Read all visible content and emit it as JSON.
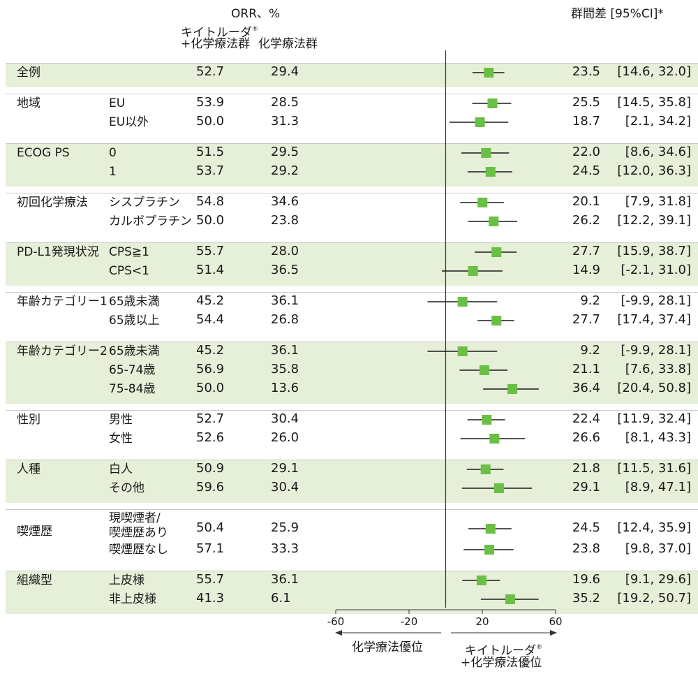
{
  "header": {
    "orr_title": "ORR、%",
    "arm1_line1": "キイトルーダ",
    "arm1_reg": "®",
    "arm1_line2": "+化学療法群",
    "arm2": "化学療法群",
    "diff_title": "群間差 [95%CI]*"
  },
  "footer": {
    "left_label": "化学療法優位",
    "right_line1": "キイトルーダ",
    "right_reg": "®",
    "right_line2": "+化学療法優位"
  },
  "chart_data": {
    "type": "forest",
    "xlim": [
      -60,
      60
    ],
    "xticks": [
      -60,
      -20,
      20,
      60
    ],
    "reference_line": 0,
    "marker_color": "#6abf45",
    "band_color": "#e6efd8",
    "groups": [
      {
        "label": "全例",
        "rows": [
          {
            "sub": "",
            "arm1": "52.7",
            "arm2": "29.4",
            "diff": 23.5,
            "ci_low": 14.6,
            "ci_high": 32.0,
            "diff_text": "23.5",
            "ci_text": "[14.6, 32.0]"
          }
        ]
      },
      {
        "label": "地域",
        "rows": [
          {
            "sub": "EU",
            "arm1": "53.9",
            "arm2": "28.5",
            "diff": 25.5,
            "ci_low": 14.5,
            "ci_high": 35.8,
            "diff_text": "25.5",
            "ci_text": "[14.5, 35.8]"
          },
          {
            "sub": "EU以外",
            "arm1": "50.0",
            "arm2": "31.3",
            "diff": 18.7,
            "ci_low": 2.1,
            "ci_high": 34.2,
            "diff_text": "18.7",
            "ci_text": "[2.1, 34.2]"
          }
        ]
      },
      {
        "label": "ECOG PS",
        "rows": [
          {
            "sub": "0",
            "arm1": "51.5",
            "arm2": "29.5",
            "diff": 22.0,
            "ci_low": 8.6,
            "ci_high": 34.6,
            "diff_text": "22.0",
            "ci_text": "[8.6, 34.6]"
          },
          {
            "sub": "1",
            "arm1": "53.7",
            "arm2": "29.2",
            "diff": 24.5,
            "ci_low": 12.0,
            "ci_high": 36.3,
            "diff_text": "24.5",
            "ci_text": "[12.0, 36.3]"
          }
        ]
      },
      {
        "label": "初回化学療法",
        "rows": [
          {
            "sub": "シスプラチン",
            "arm1": "54.8",
            "arm2": "34.6",
            "diff": 20.1,
            "ci_low": 7.9,
            "ci_high": 31.8,
            "diff_text": "20.1",
            "ci_text": "[7.9, 31.8]"
          },
          {
            "sub": "カルボプラチン",
            "arm1": "50.0",
            "arm2": "23.8",
            "diff": 26.2,
            "ci_low": 12.2,
            "ci_high": 39.1,
            "diff_text": "26.2",
            "ci_text": "[12.2, 39.1]"
          }
        ]
      },
      {
        "label": "PD-L1発現状況",
        "rows": [
          {
            "sub": "CPS≧1",
            "arm1": "55.7",
            "arm2": "28.0",
            "diff": 27.7,
            "ci_low": 15.9,
            "ci_high": 38.7,
            "diff_text": "27.7",
            "ci_text": "[15.9, 38.7]"
          },
          {
            "sub": "CPS<1",
            "arm1": "51.4",
            "arm2": "36.5",
            "diff": 14.9,
            "ci_low": -2.1,
            "ci_high": 31.0,
            "diff_text": "14.9",
            "ci_text": "[-2.1, 31.0]"
          }
        ]
      },
      {
        "label": "年齢カテゴリー1",
        "rows": [
          {
            "sub": "65歳未満",
            "arm1": "45.2",
            "arm2": "36.1",
            "diff": 9.2,
            "ci_low": -9.9,
            "ci_high": 28.1,
            "diff_text": "9.2",
            "ci_text": "[-9.9, 28.1]"
          },
          {
            "sub": "65歳以上",
            "arm1": "54.4",
            "arm2": "26.8",
            "diff": 27.7,
            "ci_low": 17.4,
            "ci_high": 37.4,
            "diff_text": "27.7",
            "ci_text": "[17.4, 37.4]"
          }
        ]
      },
      {
        "label": "年齢カテゴリー2",
        "rows": [
          {
            "sub": "65歳未満",
            "arm1": "45.2",
            "arm2": "36.1",
            "diff": 9.2,
            "ci_low": -9.9,
            "ci_high": 28.1,
            "diff_text": "9.2",
            "ci_text": "[-9.9, 28.1]"
          },
          {
            "sub": "65-74歳",
            "arm1": "56.9",
            "arm2": "35.8",
            "diff": 21.1,
            "ci_low": 7.6,
            "ci_high": 33.8,
            "diff_text": "21.1",
            "ci_text": "[7.6, 33.8]"
          },
          {
            "sub": "75-84歳",
            "arm1": "50.0",
            "arm2": "13.6",
            "diff": 36.4,
            "ci_low": 20.4,
            "ci_high": 50.8,
            "diff_text": "36.4",
            "ci_text": "[20.4, 50.8]"
          }
        ]
      },
      {
        "label": "性別",
        "rows": [
          {
            "sub": "男性",
            "arm1": "52.7",
            "arm2": "30.4",
            "diff": 22.4,
            "ci_low": 11.9,
            "ci_high": 32.4,
            "diff_text": "22.4",
            "ci_text": "[11.9, 32.4]"
          },
          {
            "sub": "女性",
            "arm1": "52.6",
            "arm2": "26.0",
            "diff": 26.6,
            "ci_low": 8.1,
            "ci_high": 43.3,
            "diff_text": "26.6",
            "ci_text": "[8.1, 43.3]"
          }
        ]
      },
      {
        "label": "人種",
        "rows": [
          {
            "sub": "白人",
            "arm1": "50.9",
            "arm2": "29.1",
            "diff": 21.8,
            "ci_low": 11.5,
            "ci_high": 31.6,
            "diff_text": "21.8",
            "ci_text": "[11.5, 31.6]"
          },
          {
            "sub": "その他",
            "arm1": "59.6",
            "arm2": "30.4",
            "diff": 29.1,
            "ci_low": 8.9,
            "ci_high": 47.1,
            "diff_text": "29.1",
            "ci_text": "[8.9, 47.1]"
          }
        ]
      },
      {
        "label": "喫煙歴",
        "rows": [
          {
            "sub": "現喫煙者/\n喫煙歴あり",
            "arm1": "50.4",
            "arm2": "25.9",
            "diff": 24.5,
            "ci_low": 12.4,
            "ci_high": 35.9,
            "diff_text": "24.5",
            "ci_text": "[12.4, 35.9]"
          },
          {
            "sub": "喫煙歴なし",
            "arm1": "57.1",
            "arm2": "33.3",
            "diff": 23.8,
            "ci_low": 9.8,
            "ci_high": 37.0,
            "diff_text": "23.8",
            "ci_text": "[9.8, 37.0]"
          }
        ]
      },
      {
        "label": "組織型",
        "rows": [
          {
            "sub": "上皮様",
            "arm1": "55.7",
            "arm2": "36.1",
            "diff": 19.6,
            "ci_low": 9.1,
            "ci_high": 29.6,
            "diff_text": "19.6",
            "ci_text": "[9.1, 29.6]"
          },
          {
            "sub": "非上皮様",
            "arm1": "41.3",
            "arm2": "6.1",
            "diff": 35.2,
            "ci_low": 19.2,
            "ci_high": 50.7,
            "diff_text": "35.2",
            "ci_text": "[19.2, 50.7]"
          }
        ]
      }
    ]
  }
}
